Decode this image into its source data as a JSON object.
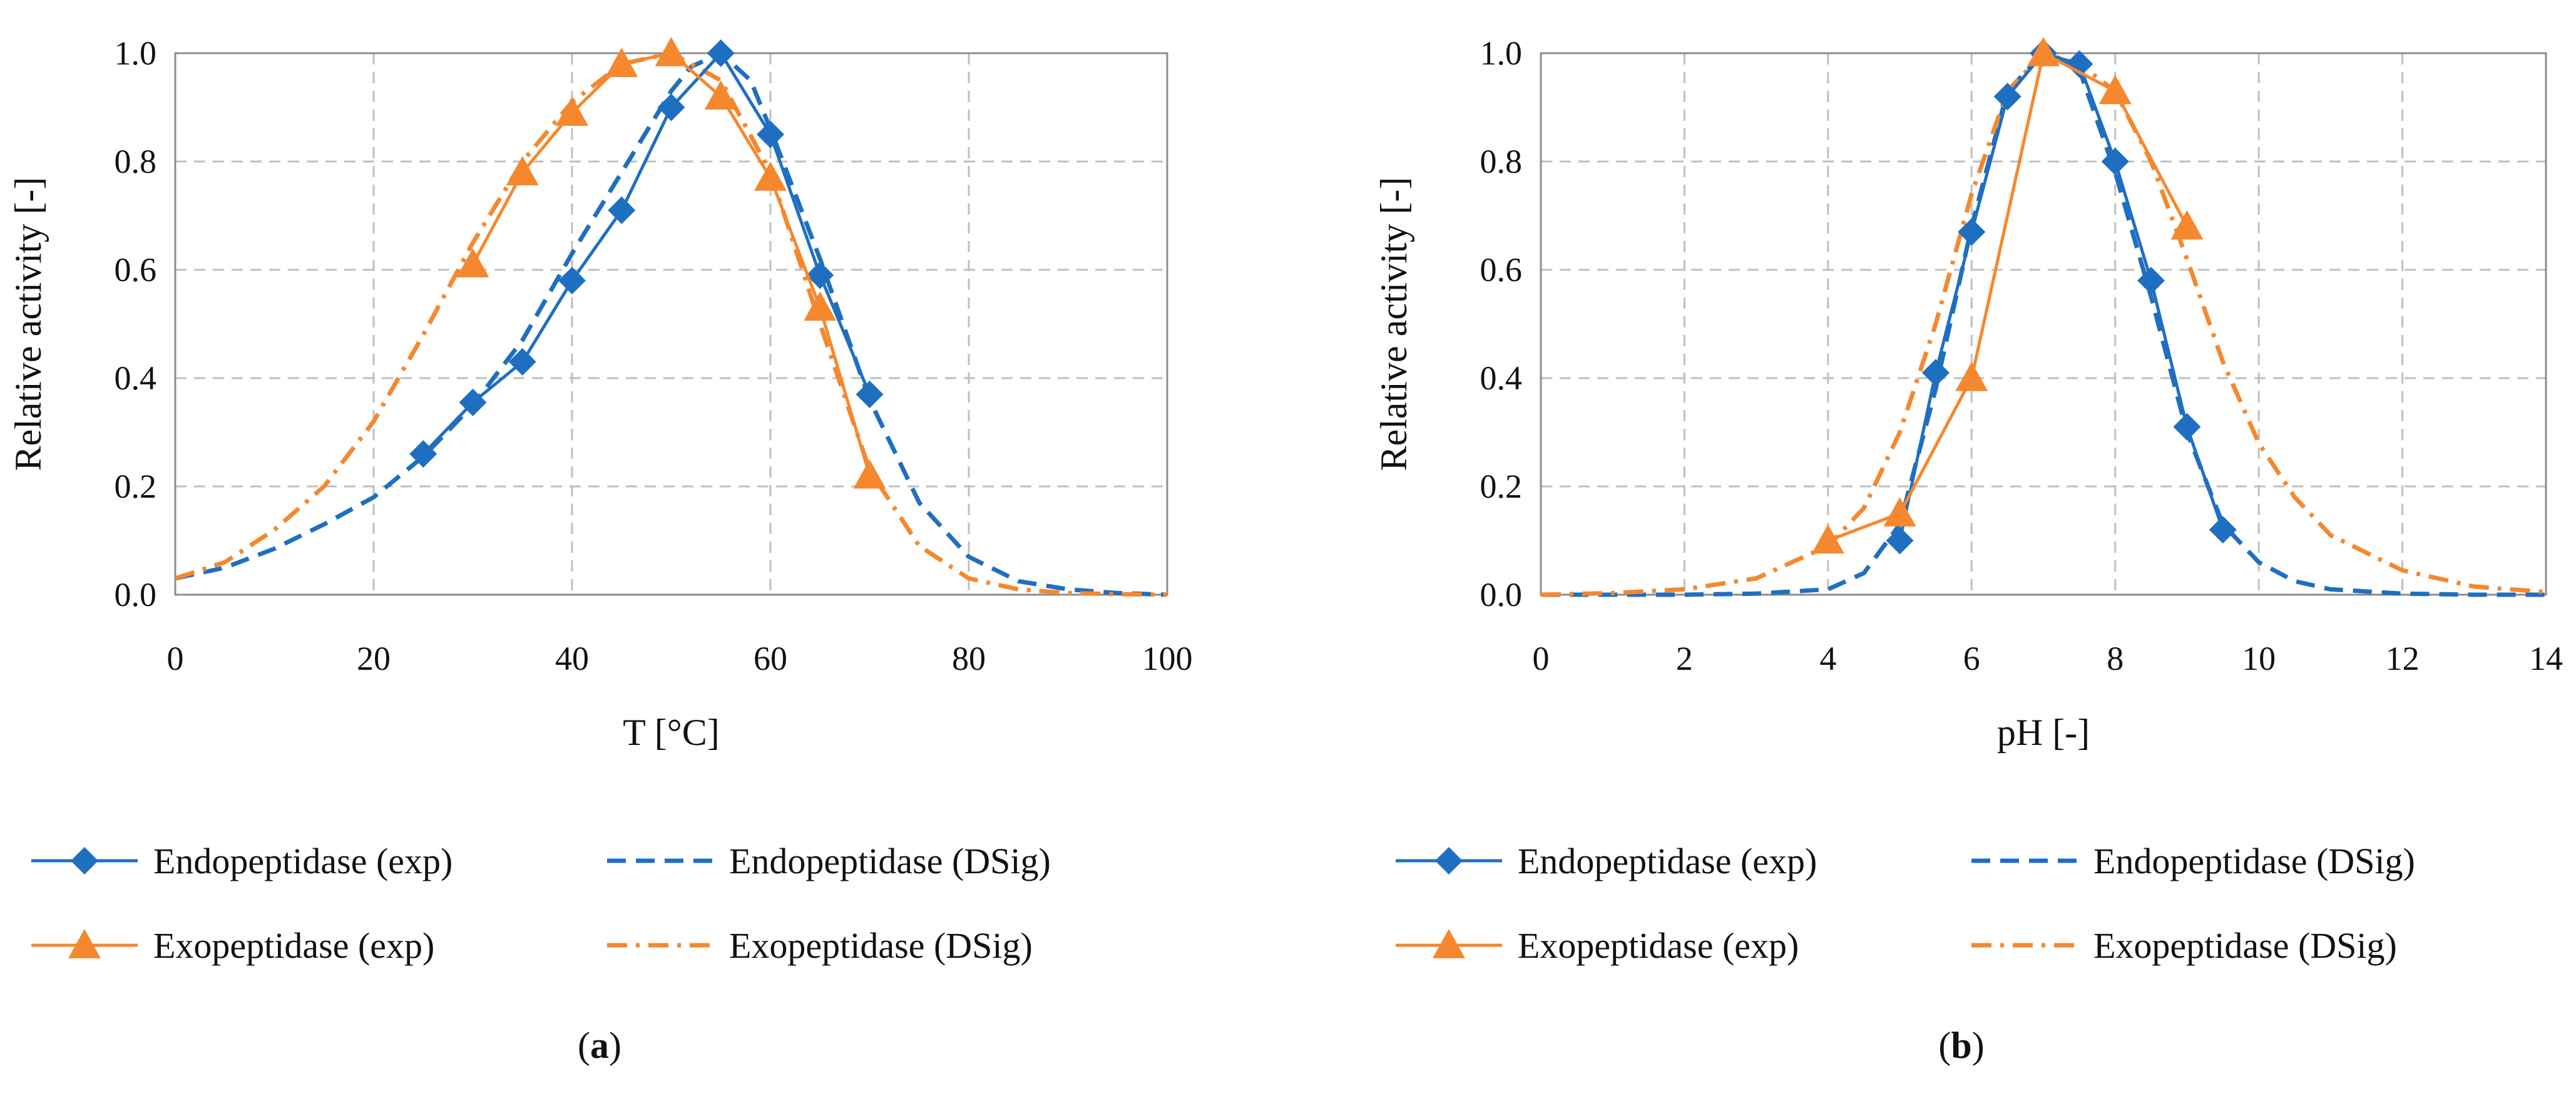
{
  "colors": {
    "endo": "#1F6FC1",
    "exo": "#F5882E",
    "grid": "#BFBFBF",
    "axis": "#8C8C8C"
  },
  "chart_data": [
    {
      "type": "line",
      "panel_label": "(a)",
      "xlabel": "T [°C]",
      "ylabel": "Relative activity [-]",
      "xlim": [
        0,
        100
      ],
      "ylim": [
        0,
        1.0
      ],
      "xticks": [
        0,
        20,
        40,
        60,
        80,
        100
      ],
      "yticks": [
        0.0,
        0.2,
        0.4,
        0.6,
        0.8,
        1.0
      ],
      "grid": true,
      "legend_position": "bottom",
      "series": [
        {
          "name": "Endopeptidase (exp)",
          "color": "endo",
          "style": "solid",
          "marker": "diamond",
          "x": [
            25,
            30,
            35,
            40,
            45,
            50,
            55,
            60,
            65,
            70
          ],
          "y": [
            0.26,
            0.355,
            0.43,
            0.58,
            0.71,
            0.9,
            1.0,
            0.85,
            0.59,
            0.37
          ]
        },
        {
          "name": "Endopeptidase (DSig)",
          "color": "endo",
          "style": "dashed",
          "marker": "none",
          "x": [
            0,
            5,
            10,
            15,
            20,
            25,
            30,
            35,
            40,
            45,
            50,
            52,
            55,
            58,
            60,
            65,
            70,
            75,
            80,
            85,
            90,
            95,
            100
          ],
          "y": [
            0.03,
            0.05,
            0.085,
            0.13,
            0.18,
            0.255,
            0.35,
            0.47,
            0.63,
            0.78,
            0.93,
            0.975,
            1.0,
            0.95,
            0.86,
            0.62,
            0.36,
            0.17,
            0.07,
            0.025,
            0.01,
            0.003,
            0.0
          ]
        },
        {
          "name": "Exopeptidase (exp)",
          "color": "exo",
          "style": "solid",
          "marker": "triangle",
          "x": [
            30,
            35,
            40,
            45,
            50,
            55,
            60,
            65,
            70
          ],
          "y": [
            0.61,
            0.78,
            0.89,
            0.98,
            1.0,
            0.92,
            0.77,
            0.53,
            0.22
          ]
        },
        {
          "name": "Exopeptidase (DSig)",
          "color": "exo",
          "style": "dashdot",
          "marker": "none",
          "x": [
            0,
            5,
            10,
            15,
            20,
            25,
            30,
            35,
            40,
            45,
            50,
            55,
            60,
            65,
            70,
            75,
            80,
            85,
            90,
            95,
            100
          ],
          "y": [
            0.03,
            0.06,
            0.12,
            0.2,
            0.32,
            0.48,
            0.65,
            0.8,
            0.91,
            0.98,
            1.0,
            0.95,
            0.78,
            0.5,
            0.23,
            0.09,
            0.03,
            0.01,
            0.003,
            0.001,
            0.0
          ]
        }
      ]
    },
    {
      "type": "line",
      "panel_label": "(b)",
      "xlabel": "pH [-]",
      "ylabel": "Relative activity [-]",
      "xlim": [
        0,
        14
      ],
      "ylim": [
        0,
        1.0
      ],
      "xticks": [
        0,
        2,
        4,
        6,
        8,
        10,
        12,
        14
      ],
      "yticks": [
        0.0,
        0.2,
        0.4,
        0.6,
        0.8,
        1.0
      ],
      "grid": true,
      "legend_position": "bottom",
      "series": [
        {
          "name": "Endopeptidase (exp)",
          "color": "endo",
          "style": "solid",
          "marker": "diamond",
          "x": [
            5,
            5.5,
            6,
            6.5,
            7,
            7.5,
            8,
            8.5,
            9,
            9.5
          ],
          "y": [
            0.1,
            0.41,
            0.67,
            0.92,
            1.0,
            0.98,
            0.8,
            0.58,
            0.31,
            0.12
          ]
        },
        {
          "name": "Endopeptidase (DSig)",
          "color": "endo",
          "style": "dashed",
          "marker": "none",
          "x": [
            0,
            1,
            2,
            3,
            4,
            4.5,
            5,
            5.5,
            6,
            6.5,
            7,
            7.5,
            8,
            8.5,
            9,
            9.5,
            10,
            10.5,
            11,
            12,
            13,
            14
          ],
          "y": [
            0.0,
            0.0,
            0.0,
            0.002,
            0.01,
            0.04,
            0.13,
            0.38,
            0.68,
            0.93,
            1.0,
            0.97,
            0.78,
            0.55,
            0.3,
            0.13,
            0.06,
            0.025,
            0.01,
            0.002,
            0.0,
            0.0
          ]
        },
        {
          "name": "Exopeptidase (exp)",
          "color": "exo",
          "style": "solid",
          "marker": "triangle",
          "x": [
            4,
            5,
            6,
            7,
            8,
            9
          ],
          "y": [
            0.1,
            0.15,
            0.4,
            1.0,
            0.93,
            0.68
          ]
        },
        {
          "name": "Exopeptidase (DSig)",
          "color": "exo",
          "style": "dashdot",
          "marker": "none",
          "x": [
            0,
            1,
            2,
            3,
            4,
            4.5,
            5,
            5.5,
            6,
            6.5,
            7,
            7.5,
            8,
            8.5,
            9,
            9.5,
            10,
            10.5,
            11,
            12,
            13,
            14
          ],
          "y": [
            0.0,
            0.003,
            0.01,
            0.03,
            0.09,
            0.16,
            0.3,
            0.5,
            0.74,
            0.93,
            1.0,
            0.98,
            0.93,
            0.8,
            0.62,
            0.43,
            0.28,
            0.18,
            0.11,
            0.045,
            0.015,
            0.005
          ]
        }
      ]
    }
  ]
}
